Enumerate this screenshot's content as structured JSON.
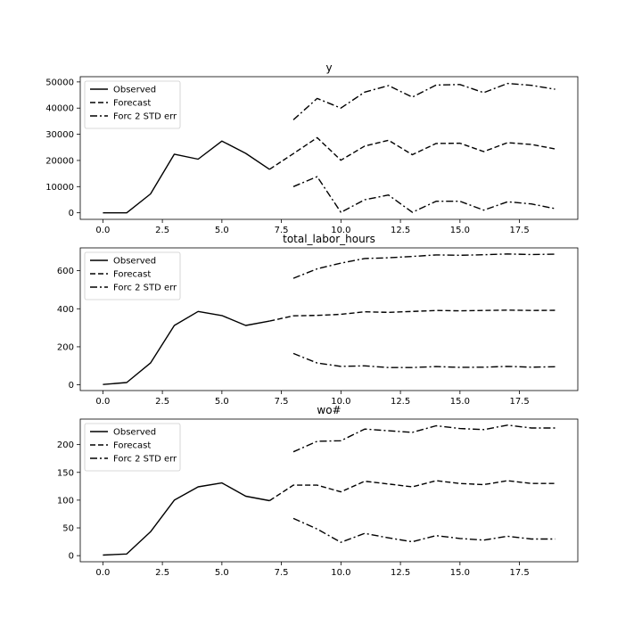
{
  "chart_data": [
    {
      "type": "line",
      "title": "y",
      "xlabel": "",
      "ylabel": "",
      "xlim": [
        -0.95,
        19.95
      ],
      "ylim": [
        -2500,
        52000
      ],
      "xticks": [
        0.0,
        2.5,
        5.0,
        7.5,
        10.0,
        12.5,
        15.0,
        17.5
      ],
      "xtick_labels": [
        "0.0",
        "2.5",
        "5.0",
        "7.5",
        "10.0",
        "12.5",
        "15.0",
        "17.5"
      ],
      "yticks": [
        0,
        10000,
        20000,
        30000,
        40000,
        50000
      ],
      "ytick_labels": [
        "0",
        "10000",
        "20000",
        "30000",
        "40000",
        "50000"
      ],
      "legend_position": "top-left",
      "grid": false,
      "series": [
        {
          "name": "Observed",
          "style": "solid",
          "x": [
            0,
            1,
            2,
            3,
            4,
            5,
            6,
            7
          ],
          "values": [
            0,
            0,
            7200,
            22400,
            20500,
            27400,
            22700,
            16600
          ]
        },
        {
          "name": "Forecast",
          "style": "dashed",
          "x": [
            7,
            8,
            9,
            10,
            11,
            12,
            13,
            14,
            15,
            16,
            17,
            18,
            19
          ],
          "values": [
            16600,
            22600,
            28700,
            20100,
            25500,
            27700,
            22200,
            26500,
            26600,
            23400,
            26800,
            26100,
            24400
          ]
        },
        {
          "name": "Forc 2 STD err",
          "style": "dashdot",
          "x": [
            8,
            9,
            10,
            11,
            12,
            13,
            14,
            15,
            16,
            17,
            18,
            19
          ],
          "values": [
            35500,
            43700,
            40000,
            46100,
            48600,
            44200,
            48800,
            49000,
            45900,
            49400,
            48700,
            47200
          ]
        },
        {
          "name": "",
          "style": "dashdot",
          "x": [
            8,
            9,
            10,
            11,
            12,
            13,
            14,
            15,
            16,
            17,
            18,
            19
          ],
          "values": [
            10000,
            13800,
            200,
            5000,
            6800,
            200,
            4400,
            4400,
            1000,
            4200,
            3400,
            1600
          ]
        }
      ]
    },
    {
      "type": "line",
      "title": "total_labor_hours",
      "xlabel": "",
      "ylabel": "",
      "xlim": [
        -0.95,
        19.95
      ],
      "ylim": [
        -30,
        720
      ],
      "xticks": [
        0.0,
        2.5,
        5.0,
        7.5,
        10.0,
        12.5,
        15.0,
        17.5
      ],
      "xtick_labels": [
        "0.0",
        "2.5",
        "5.0",
        "7.5",
        "10.0",
        "12.5",
        "15.0",
        "17.5"
      ],
      "yticks": [
        0,
        200,
        400,
        600
      ],
      "ytick_labels": [
        "0",
        "200",
        "400",
        "600"
      ],
      "legend_position": "top-left",
      "grid": false,
      "series": [
        {
          "name": "Observed",
          "style": "solid",
          "x": [
            0,
            1,
            2,
            3,
            4,
            5,
            6,
            7
          ],
          "values": [
            2,
            12,
            115,
            312,
            386,
            364,
            312,
            335
          ]
        },
        {
          "name": "Forecast",
          "style": "dashed",
          "x": [
            7,
            8,
            9,
            10,
            11,
            12,
            13,
            14,
            15,
            16,
            17,
            18,
            19
          ],
          "values": [
            335,
            363,
            365,
            371,
            384,
            381,
            386,
            391,
            389,
            391,
            393,
            391,
            392
          ]
        },
        {
          "name": "Forc 2 STD err",
          "style": "dashdot",
          "x": [
            8,
            9,
            10,
            11,
            12,
            13,
            14,
            15,
            16,
            17,
            18,
            19
          ],
          "values": [
            560,
            610,
            640,
            664,
            668,
            675,
            683,
            681,
            684,
            688,
            685,
            687
          ]
        },
        {
          "name": "",
          "style": "dashdot",
          "x": [
            8,
            9,
            10,
            11,
            12,
            13,
            14,
            15,
            16,
            17,
            18,
            19
          ],
          "values": [
            165,
            115,
            97,
            100,
            91,
            91,
            96,
            92,
            93,
            97,
            93,
            95
          ]
        }
      ]
    },
    {
      "type": "line",
      "title": "wo#",
      "xlabel": "",
      "ylabel": "",
      "xlim": [
        -0.95,
        19.95
      ],
      "ylim": [
        -11,
        246
      ],
      "xticks": [
        0.0,
        2.5,
        5.0,
        7.5,
        10.0,
        12.5,
        15.0,
        17.5
      ],
      "xtick_labels": [
        "0.0",
        "2.5",
        "5.0",
        "7.5",
        "10.0",
        "12.5",
        "15.0",
        "17.5"
      ],
      "yticks": [
        0,
        50,
        100,
        150,
        200
      ],
      "ytick_labels": [
        "0",
        "50",
        "100",
        "150",
        "200"
      ],
      "legend_position": "top-left",
      "grid": false,
      "series": [
        {
          "name": "Observed",
          "style": "solid",
          "x": [
            0,
            1,
            2,
            3,
            4,
            5,
            6,
            7
          ],
          "values": [
            1,
            3,
            43,
            100,
            124,
            131,
            107,
            99
          ]
        },
        {
          "name": "Forecast",
          "style": "dashed",
          "x": [
            7,
            8,
            9,
            10,
            11,
            12,
            13,
            14,
            15,
            16,
            17,
            18,
            19
          ],
          "values": [
            99,
            127,
            127,
            115,
            134,
            129,
            124,
            135,
            130,
            128,
            135,
            130,
            130
          ]
        },
        {
          "name": "Forc 2 STD err",
          "style": "dashdot",
          "x": [
            8,
            9,
            10,
            11,
            12,
            13,
            14,
            15,
            16,
            17,
            18,
            19
          ],
          "values": [
            187,
            206,
            207,
            228,
            225,
            222,
            234,
            229,
            227,
            235,
            230,
            230
          ]
        },
        {
          "name": "",
          "style": "dashdot",
          "x": [
            8,
            9,
            10,
            11,
            12,
            13,
            14,
            15,
            16,
            17,
            18,
            19
          ],
          "values": [
            67,
            48,
            24,
            40,
            32,
            25,
            36,
            31,
            28,
            35,
            30,
            30
          ]
        }
      ]
    }
  ]
}
